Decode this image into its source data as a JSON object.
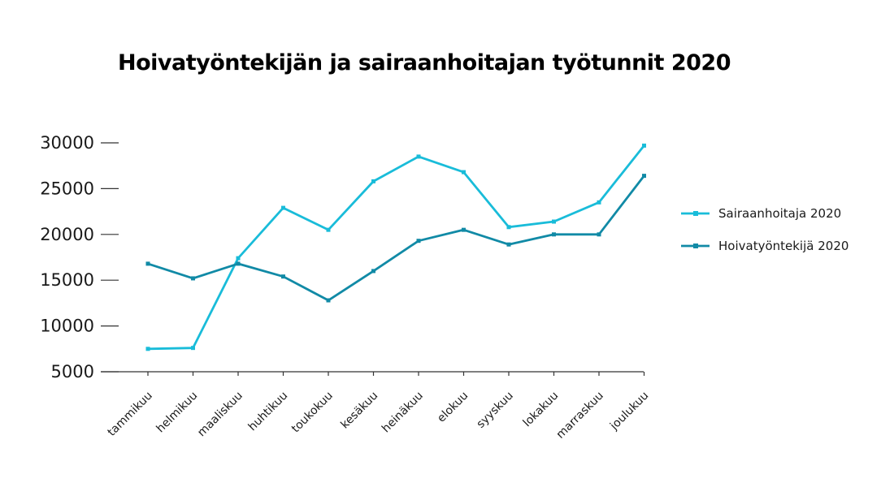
{
  "chart_data": {
    "type": "line",
    "title": "Hoivatyöntekijän ja sairaanhoitajan työtunnit 2020",
    "categories": [
      "tammikuu",
      "helmikuu",
      "maaliskuu",
      "huhtikuu",
      "toukokuu",
      "kesäkuu",
      "heinäkuu",
      "elokuu",
      "syyskuu",
      "lokakuu",
      "marraskuu",
      "joulukuu"
    ],
    "series": [
      {
        "name": "Sairaanhoitaja 2020",
        "color": "#19bcd9",
        "values": [
          7500,
          7600,
          17400,
          22900,
          20500,
          25800,
          28500,
          26800,
          20800,
          21400,
          23500,
          29700
        ]
      },
      {
        "name": "Hoivatyöntekijä 2020",
        "color": "#118aa6",
        "values": [
          16800,
          15200,
          16800,
          15400,
          12800,
          16000,
          19300,
          20500,
          18900,
          20000,
          20000,
          26400
        ]
      }
    ],
    "yticks": [
      5000,
      10000,
      15000,
      20000,
      25000,
      30000
    ],
    "ylim": [
      5000,
      30000
    ],
    "grid": false,
    "legend_position": "right"
  }
}
